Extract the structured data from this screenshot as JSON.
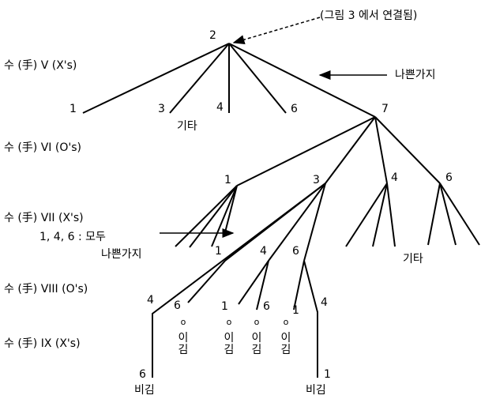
{
  "header": {
    "note": "(그림 3 에서 연결됨)"
  },
  "move_labels": [
    "수 (手) V (X's)",
    "수 (手) VI (O's)",
    "수 (手) VII (X's)",
    "수 (手) VIII (O's)",
    "수 (手) IX (X's)"
  ],
  "tree": {
    "root": "2",
    "level_v": [
      "1",
      "3",
      "4",
      "6",
      "7"
    ],
    "level_v_other": "기타",
    "bad_branch": "나쁜가지",
    "level_vi": [
      "1",
      "3",
      "4",
      "6"
    ],
    "level_vi_note": [
      "1, 4, 6 : 모두",
      "나쁜가지"
    ],
    "level_vii": [
      "1",
      "4",
      "6"
    ],
    "level_vii_other": "기타",
    "level_viii": [
      "4",
      "6",
      "1",
      "6",
      "1",
      "4"
    ],
    "wins": [
      [
        "o",
        "이",
        "김"
      ],
      [
        "o",
        "이",
        "김"
      ],
      [
        "o",
        "이",
        "김"
      ],
      [
        "o",
        "이",
        "김"
      ]
    ],
    "draws": [
      {
        "move": "6",
        "label": "비김"
      },
      {
        "move": "1",
        "label": "비김"
      }
    ]
  }
}
